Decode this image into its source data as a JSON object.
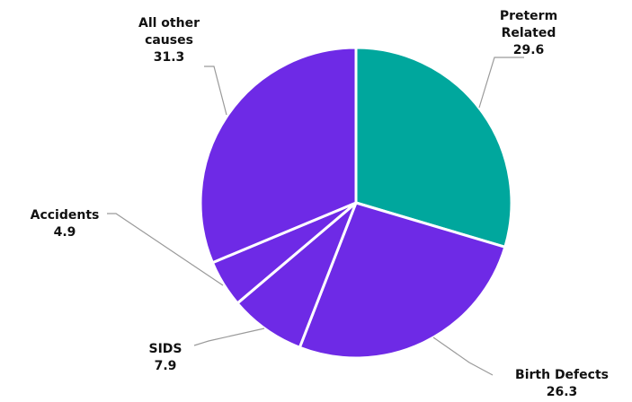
{
  "chart_data": {
    "type": "pie",
    "title": "",
    "start_angle_deg": 0,
    "direction": "clockwise",
    "colors": {
      "teal": "#00a79d",
      "purple": "#6e2ae6",
      "separator": "#ffffff",
      "leader": "#9a9a9a",
      "text": "#111111"
    },
    "slices": [
      {
        "label_lines": [
          "Preterm",
          "Related"
        ],
        "value": 29.6,
        "value_label": "29.6",
        "color": "#00a79d"
      },
      {
        "label_lines": [
          "Birth Defects"
        ],
        "value": 26.3,
        "value_label": "26.3",
        "color": "#6e2ae6"
      },
      {
        "label_lines": [
          "SIDS"
        ],
        "value": 7.9,
        "value_label": "7.9",
        "color": "#6e2ae6"
      },
      {
        "label_lines": [
          "Accidents"
        ],
        "value": 4.9,
        "value_label": "4.9",
        "color": "#6e2ae6"
      },
      {
        "label_lines": [
          "All other",
          "causes"
        ],
        "value": 31.3,
        "value_label": "31.3",
        "color": "#6e2ae6"
      }
    ]
  }
}
